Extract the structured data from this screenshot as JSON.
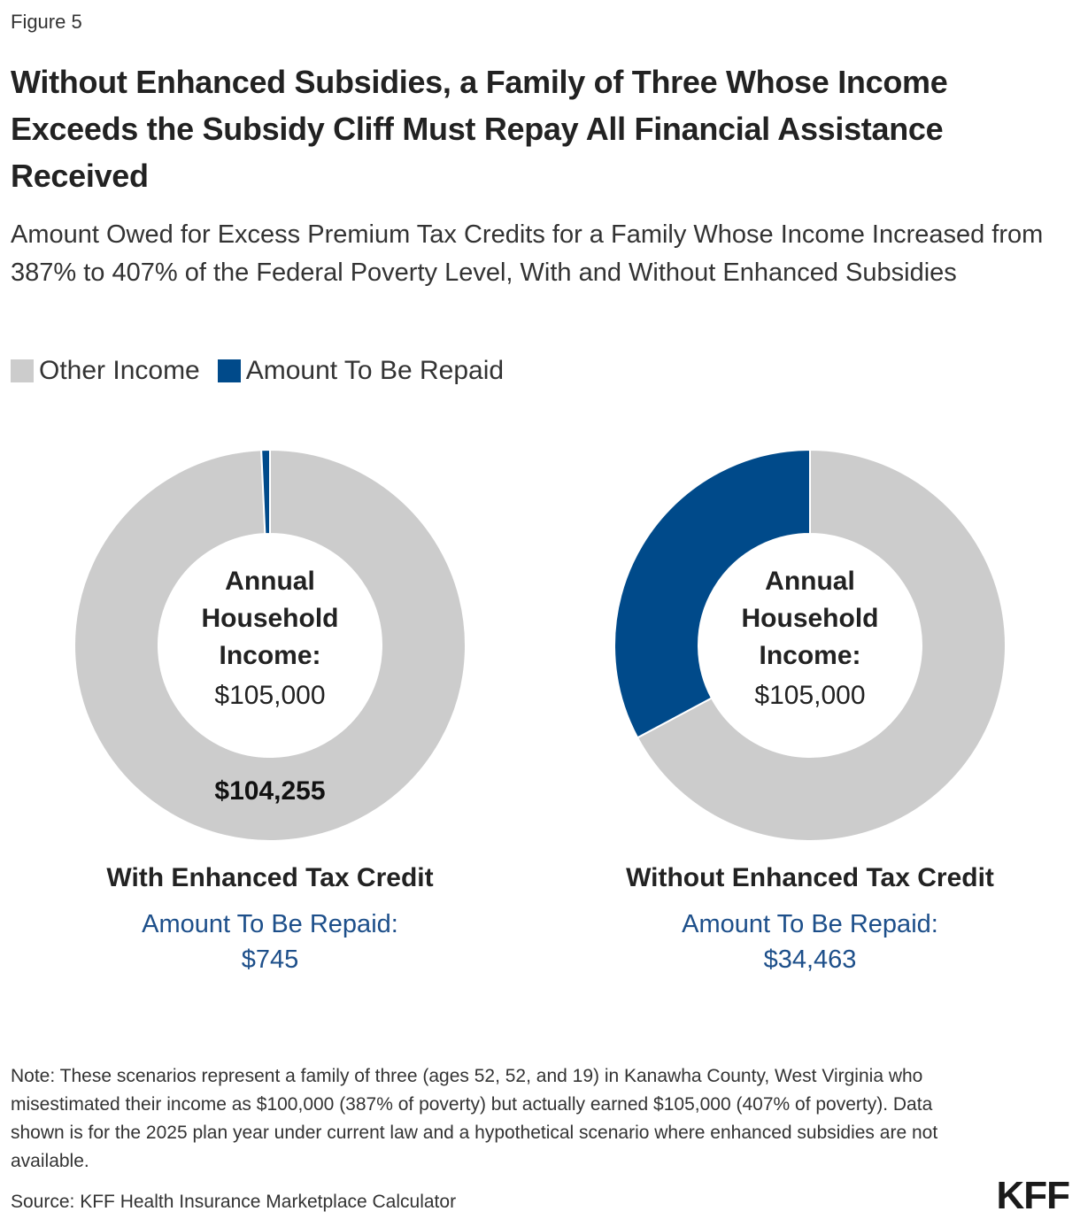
{
  "figure_label": "Figure 5",
  "title": "Without Enhanced Subsidies, a Family of Three Whose Income Exceeds the Subsidy Cliff Must Repay All Financial Assistance Received",
  "subtitle": "Amount Owed for Excess Premium Tax Credits for a Family Whose Income Increased from 387% to 407% of the Federal Poverty Level, With and Without Enhanced Subsidies",
  "legend": [
    {
      "label": "Other Income",
      "color": "#cccccc"
    },
    {
      "label": "Amount To Be Repaid",
      "color": "#004a8a"
    }
  ],
  "chart_data": [
    {
      "type": "pie",
      "variant": "donut",
      "title": "With Enhanced Tax Credit",
      "center_label_lines": [
        "Annual",
        "Household",
        "Income:"
      ],
      "center_value": "$105,000",
      "total": 105000,
      "slices": [
        {
          "name": "Amount To Be Repaid",
          "value": 745,
          "color": "#004a8a",
          "label": ""
        },
        {
          "name": "Other Income",
          "value": 104255,
          "color": "#cccccc",
          "label": "$104,255"
        }
      ],
      "repaid_label": "Amount To Be Repaid:",
      "repaid_value": "$745"
    },
    {
      "type": "pie",
      "variant": "donut",
      "title": "Without Enhanced Tax Credit",
      "center_label_lines": [
        "Annual",
        "Household",
        "Income:"
      ],
      "center_value": "$105,000",
      "total": 105000,
      "slices": [
        {
          "name": "Amount To Be Repaid",
          "value": 34463,
          "color": "#004a8a",
          "label": ""
        },
        {
          "name": "Other Income",
          "value": 70537,
          "color": "#cccccc",
          "label": ""
        }
      ],
      "repaid_label": "Amount To Be Repaid:",
      "repaid_value": "$34,463"
    }
  ],
  "note": "Note: These scenarios represent a family of three (ages 52, 52, and 19) in Kanawha County, West Virginia who misestimated their income as $100,000 (387% of poverty) but actually earned $105,000 (407% of poverty). Data shown is for the 2025 plan year under current law and a hypothetical scenario where enhanced subsidies are not available.",
  "source": "Source: KFF Health Insurance Marketplace Calculator",
  "logo": "KFF"
}
